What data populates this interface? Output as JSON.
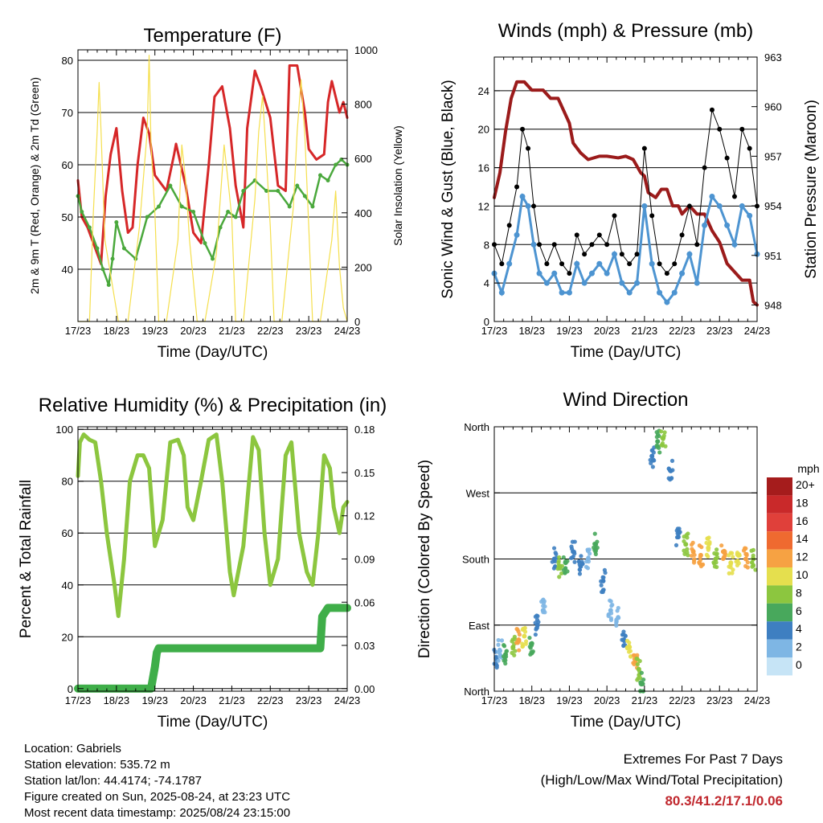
{
  "info": {
    "location": "Location: Gabriels",
    "elevation": "Station elevation: 535.72 m",
    "latlon": "Station lat/lon: 44.4174; -74.1787",
    "created": "Figure created on Sun, 2025-08-24, at 23:23 UTC",
    "recent": "Most recent data timestamp: 2025/08/24 23:15:00"
  },
  "extremes": {
    "title": "Extremes For Past 7 Days",
    "subtitle": "(High/Low/Max Wind/Total Precipitation)",
    "values": "80.3/41.2/17.1/0.06"
  },
  "chart_data": [
    {
      "type": "line",
      "title": "Temperature (F)",
      "xlabel": "Time (Day/UTC)",
      "ylabel": "2m & 9m T (Red, Orange) & 2m Td (Green)",
      "y2label": "Solar Insolation (Yellow)",
      "x_ticks": [
        "17/23",
        "18/23",
        "19/23",
        "20/23",
        "21/23",
        "22/23",
        "23/23",
        "24/23"
      ],
      "xlim": [
        0,
        7
      ],
      "ylim": [
        30,
        82
      ],
      "y_ticks": [
        40,
        50,
        60,
        70,
        80
      ],
      "y2lim": [
        0,
        1000
      ],
      "y2_ticks": [
        0,
        200,
        400,
        600,
        800,
        1000
      ],
      "colors": {
        "t2m": "#d62728",
        "t9m": "#ff8c1a",
        "td": "#4aa83c",
        "solar": "#f5df4d"
      },
      "series": [
        {
          "key": "t2m",
          "x": [
            0,
            0.1,
            0.25,
            0.45,
            0.6,
            0.72,
            0.85,
            1.0,
            1.15,
            1.3,
            1.42,
            1.55,
            1.7,
            1.85,
            2.0,
            2.3,
            2.5,
            2.55,
            2.8,
            3.0,
            3.2,
            3.4,
            3.55,
            3.75,
            3.95,
            4.1,
            4.3,
            4.4,
            4.6,
            4.75,
            5.0,
            5.2,
            5.4,
            5.5,
            5.7,
            5.9,
            6.0,
            6.2,
            6.4,
            6.5,
            6.6,
            6.8,
            6.9,
            7.0
          ],
          "y": [
            57,
            50,
            48,
            44,
            41,
            54,
            62,
            67,
            55,
            47,
            48,
            60,
            69,
            66,
            58,
            55,
            62,
            64,
            56,
            47,
            45,
            60,
            73,
            75,
            67,
            56,
            48,
            67,
            78,
            75,
            69,
            56,
            55,
            79,
            79,
            70,
            63,
            61,
            62,
            72,
            76,
            70,
            72,
            69
          ]
        },
        {
          "key": "td",
          "x": [
            0,
            0.1,
            0.3,
            0.5,
            0.65,
            0.8,
            0.9,
            1.0,
            1.2,
            1.5,
            1.8,
            2.1,
            2.4,
            2.7,
            3.0,
            3.3,
            3.5,
            3.7,
            3.9,
            4.1,
            4.3,
            4.6,
            4.9,
            5.2,
            5.5,
            5.7,
            5.9,
            6.1,
            6.3,
            6.5,
            6.7,
            6.85,
            7.0
          ],
          "y": [
            54,
            51,
            48,
            44,
            40,
            37,
            42,
            49,
            44,
            42,
            50,
            52,
            56,
            52,
            51,
            45,
            42,
            48,
            51,
            50,
            55,
            57,
            55,
            55,
            52,
            56,
            54,
            52,
            58,
            57,
            60,
            61,
            60
          ]
        },
        {
          "key": "solar",
          "x": [
            0,
            0.3,
            0.4,
            0.5,
            0.55,
            0.6,
            0.7,
            1.05,
            1.3,
            1.6,
            1.8,
            1.85,
            1.9,
            2.0,
            2.1,
            2.3,
            2.6,
            2.7,
            2.8,
            2.9,
            3.0,
            3.1,
            3.3,
            3.6,
            3.7,
            3.8,
            3.9,
            4.0,
            4.1,
            4.3,
            4.6,
            4.7,
            4.8,
            4.9,
            5.0,
            5.1,
            5.3,
            5.6,
            5.7,
            5.8,
            5.9,
            6.0,
            6.1,
            6.3,
            6.6,
            6.7,
            6.8,
            6.9,
            7.0
          ],
          "y": [
            0,
            0,
            400,
            700,
            880,
            700,
            300,
            0,
            0,
            350,
            700,
            980,
            650,
            400,
            0,
            0,
            300,
            650,
            520,
            300,
            150,
            0,
            0,
            250,
            450,
            650,
            520,
            380,
            0,
            0,
            450,
            700,
            830,
            600,
            350,
            0,
            0,
            420,
            700,
            890,
            680,
            350,
            0,
            0,
            300,
            480,
            200,
            50,
            0
          ]
        }
      ]
    },
    {
      "type": "line",
      "title": "Winds (mph) & Pressure (mb)",
      "xlabel": "Time (Day/UTC)",
      "ylabel": "Sonic Wind & Gust (Blue, Black)",
      "y2label": "Station Pressure (Maroon)",
      "x_ticks": [
        "17/23",
        "18/23",
        "19/23",
        "20/23",
        "21/23",
        "22/23",
        "23/23",
        "24/23"
      ],
      "xlim": [
        0,
        7
      ],
      "ylim": [
        0,
        27.5
      ],
      "y_ticks": [
        0,
        4,
        8,
        12,
        16,
        20,
        24
      ],
      "y2lim": [
        947,
        963
      ],
      "y2_ticks": [
        948,
        951,
        954,
        957,
        960,
        963
      ],
      "colors": {
        "wind": "#4d94d1",
        "gust": "#000000",
        "pressure": "#9b1b1b"
      },
      "series": [
        {
          "key": "pressure",
          "x": [
            0,
            0.15,
            0.3,
            0.45,
            0.6,
            0.8,
            1.0,
            1.3,
            1.5,
            1.7,
            1.9,
            2.0,
            2.1,
            2.3,
            2.5,
            2.8,
            3.0,
            3.3,
            3.5,
            3.7,
            3.9,
            4.0,
            4.1,
            4.3,
            4.45,
            4.6,
            4.75,
            4.9,
            5.0,
            5.2,
            5.4,
            5.6,
            5.8,
            6.0,
            6.2,
            6.4,
            6.6,
            6.8,
            6.9,
            7.0
          ],
          "y": [
            954.5,
            956,
            958.5,
            960.5,
            961.5,
            961.5,
            961,
            961,
            960.5,
            960.5,
            959.5,
            959,
            957.8,
            957.2,
            956.8,
            957,
            957,
            956.9,
            957,
            956.8,
            956,
            955.8,
            954.8,
            954.5,
            955,
            955,
            954,
            954,
            953.5,
            954,
            953.5,
            953.5,
            952.5,
            951.8,
            950.5,
            950,
            949.5,
            949.5,
            948.2,
            948
          ]
        },
        {
          "key": "wind",
          "x": [
            0,
            0.2,
            0.4,
            0.6,
            0.75,
            0.9,
            1.05,
            1.2,
            1.4,
            1.6,
            1.8,
            2.0,
            2.2,
            2.4,
            2.6,
            2.8,
            3.0,
            3.2,
            3.4,
            3.6,
            3.8,
            4.0,
            4.2,
            4.4,
            4.6,
            4.8,
            5.0,
            5.2,
            5.4,
            5.6,
            5.8,
            6.0,
            6.2,
            6.4,
            6.6,
            6.8,
            7.0
          ],
          "y": [
            5,
            3,
            6,
            9,
            13,
            12,
            8,
            5,
            4,
            5,
            3,
            3,
            6,
            4,
            5,
            6,
            5,
            7,
            4,
            3,
            4,
            12,
            6,
            3,
            2,
            3,
            5,
            7,
            4,
            10,
            13,
            12,
            10,
            8,
            12,
            11,
            7
          ]
        },
        {
          "key": "gust",
          "x": [
            0,
            0.2,
            0.4,
            0.6,
            0.75,
            0.9,
            1.05,
            1.2,
            1.4,
            1.6,
            1.8,
            2.0,
            2.2,
            2.4,
            2.6,
            2.8,
            3.0,
            3.2,
            3.4,
            3.6,
            3.8,
            4.0,
            4.2,
            4.4,
            4.6,
            4.8,
            5.0,
            5.2,
            5.4,
            5.6,
            5.8,
            6.0,
            6.2,
            6.4,
            6.6,
            6.8,
            7.0
          ],
          "y": [
            8,
            6,
            10,
            14,
            20,
            18,
            12,
            8,
            6,
            8,
            6,
            5,
            9,
            7,
            8,
            9,
            8,
            11,
            7,
            6,
            7,
            18,
            11,
            6,
            5,
            6,
            9,
            12,
            8,
            16,
            22,
            20,
            17,
            13,
            20,
            18,
            12
          ]
        }
      ]
    },
    {
      "type": "line",
      "title": "Relative Humidity (%) & Precipitation (in)",
      "xlabel": "Time (Day/UTC)",
      "ylabel": "Percent & Total Rainfall",
      "x_ticks": [
        "17/23",
        "18/23",
        "19/23",
        "20/23",
        "21/23",
        "22/23",
        "23/23",
        "24/23"
      ],
      "xlim": [
        0,
        7
      ],
      "ylim": [
        -1,
        101
      ],
      "y_ticks": [
        0,
        20,
        40,
        60,
        80,
        100
      ],
      "y2lim": [
        -0.0018,
        0.1818
      ],
      "y2_ticks": [
        "0.00",
        "0.03",
        "0.06",
        "0.09",
        "0.12",
        "0.15",
        "0.18"
      ],
      "colors": {
        "rh": "#8cc63f",
        "precip": "#3fae49"
      },
      "series": [
        {
          "key": "rh",
          "x": [
            0,
            0.05,
            0.15,
            0.3,
            0.45,
            0.6,
            0.75,
            0.95,
            1.05,
            1.2,
            1.35,
            1.55,
            1.7,
            1.85,
            2.0,
            2.2,
            2.4,
            2.6,
            2.75,
            2.85,
            3.0,
            3.2,
            3.4,
            3.6,
            3.75,
            3.95,
            4.05,
            4.3,
            4.55,
            4.7,
            4.85,
            5.0,
            5.2,
            5.4,
            5.55,
            5.75,
            5.95,
            6.1,
            6.25,
            6.4,
            6.55,
            6.65,
            6.8,
            6.9,
            7.0
          ],
          "y": [
            82,
            95,
            98,
            96,
            95,
            80,
            60,
            40,
            28,
            50,
            80,
            90,
            90,
            85,
            55,
            65,
            95,
            96,
            90,
            70,
            65,
            80,
            96,
            98,
            80,
            45,
            36,
            55,
            97,
            92,
            60,
            40,
            50,
            90,
            95,
            60,
            45,
            40,
            60,
            90,
            85,
            70,
            60,
            70,
            72
          ]
        },
        {
          "key": "precip",
          "x": [
            0,
            1.9,
            2.0,
            2.05,
            2.1,
            2.3,
            6.3,
            6.35,
            6.5,
            7.0
          ],
          "y": [
            0,
            0,
            0.015,
            0.025,
            0.028,
            0.028,
            0.028,
            0.05,
            0.056,
            0.056
          ]
        }
      ]
    },
    {
      "type": "scatter",
      "title": "Wind Direction",
      "xlabel": "Time (Day/UTC)",
      "ylabel": "Direction (Colored By Speed)",
      "x_ticks": [
        "17/23",
        "18/23",
        "19/23",
        "20/23",
        "21/23",
        "22/23",
        "23/23",
        "24/23"
      ],
      "xlim": [
        0,
        7
      ],
      "ylim": [
        0,
        360
      ],
      "y_tick_labels": [
        "North",
        "East",
        "South",
        "West",
        "North"
      ],
      "legend_title": "mph",
      "legend_labels": [
        "20+",
        "18",
        "16",
        "14",
        "12",
        "10",
        "8",
        "6",
        "4",
        "2",
        "0"
      ],
      "legend_colors": [
        "#a51c1c",
        "#c9292a",
        "#e0403a",
        "#ef6a30",
        "#f6a243",
        "#e5df4e",
        "#8cc63f",
        "#48a85c",
        "#3e7fc1",
        "#7eb6e4",
        "#c6e4f6"
      ],
      "x": [
        0.05,
        0.15,
        0.3,
        0.5,
        0.65,
        0.8,
        1.0,
        1.15,
        1.3,
        1.6,
        1.75,
        1.9,
        2.1,
        2.3,
        2.5,
        2.7,
        2.9,
        3.1,
        3.3,
        3.45,
        3.6,
        3.75,
        3.85,
        3.95,
        4.2,
        4.35,
        4.5,
        4.7,
        4.9,
        5.1,
        5.3,
        5.5,
        5.7,
        5.9,
        6.1,
        6.3,
        6.5,
        6.7,
        6.9
      ],
      "y": [
        45,
        55,
        50,
        60,
        70,
        75,
        65,
        90,
        110,
        180,
        170,
        175,
        190,
        170,
        180,
        200,
        150,
        110,
        100,
        70,
        60,
        40,
        30,
        10,
        320,
        340,
        345,
        300,
        210,
        200,
        190,
        185,
        195,
        180,
        190,
        175,
        185,
        180,
        180
      ],
      "speed": [
        4,
        3,
        6,
        9,
        13,
        11,
        6,
        4,
        3,
        5,
        8,
        6,
        4,
        5,
        3,
        6,
        4,
        2,
        3,
        4,
        10,
        12,
        9,
        6,
        5,
        6,
        8,
        4,
        5,
        9,
        12,
        13,
        11,
        9,
        12,
        10,
        11,
        13,
        8
      ]
    }
  ]
}
